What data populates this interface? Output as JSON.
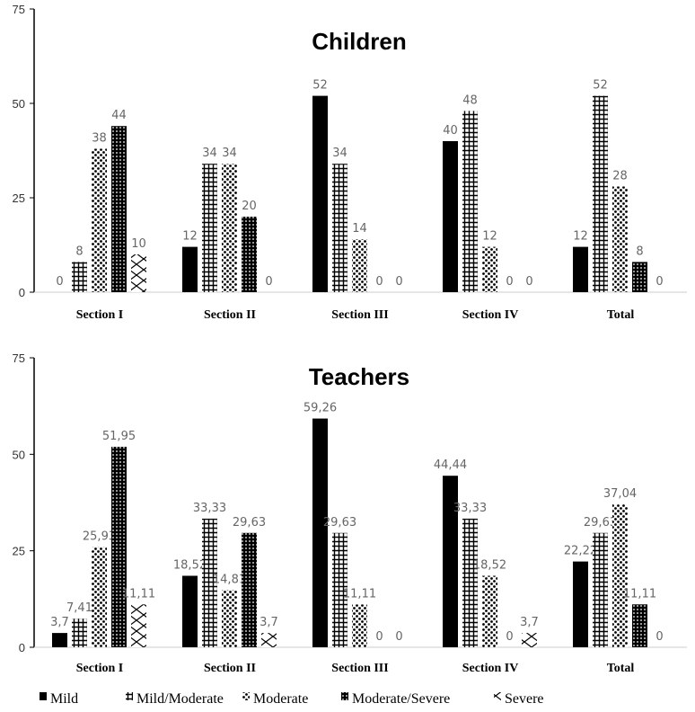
{
  "chart_data": [
    {
      "type": "bar",
      "title": "Children",
      "categories": [
        "Section I",
        "Section II",
        "Section III",
        "Section IV",
        "Total"
      ],
      "ylim": [
        0,
        75
      ],
      "yticks": [
        "0",
        "25",
        "50",
        "75"
      ],
      "series": [
        {
          "name": "Mild",
          "values": [
            0,
            12,
            52,
            40,
            12
          ],
          "labels": [
            "0",
            "12",
            "52",
            "40",
            "12"
          ]
        },
        {
          "name": "Mild/Moderate",
          "values": [
            8,
            34,
            34,
            48,
            52
          ],
          "labels": [
            "8",
            "34",
            "34",
            "48",
            "52"
          ]
        },
        {
          "name": "Moderate",
          "values": [
            38,
            34,
            14,
            12,
            28
          ],
          "labels": [
            "38",
            "34",
            "14",
            "12",
            "28"
          ]
        },
        {
          "name": "Moderate/Severe",
          "values": [
            44,
            20,
            0,
            0,
            8
          ],
          "labels": [
            "44",
            "20",
            "0",
            "0",
            "8"
          ]
        },
        {
          "name": "Severe",
          "values": [
            10,
            0,
            0,
            0,
            0
          ],
          "labels": [
            "10",
            "0",
            "0",
            "0",
            "0"
          ]
        }
      ]
    },
    {
      "type": "bar",
      "title": "Teachers",
      "categories": [
        "Section I",
        "Section II",
        "Section III",
        "Section IV",
        "Total"
      ],
      "ylim": [
        0,
        75
      ],
      "yticks": [
        "0",
        "25",
        "50",
        "75"
      ],
      "series": [
        {
          "name": "Mild",
          "values": [
            3.7,
            18.52,
            59.26,
            44.44,
            22.22
          ],
          "labels": [
            "3,7",
            "18,52",
            "59,26",
            "44,44",
            "22,22"
          ]
        },
        {
          "name": "Mild/Moderate",
          "values": [
            7.41,
            33.33,
            29.63,
            33.33,
            29.63
          ],
          "labels": [
            "7,41",
            "33,33",
            "29,63",
            "33,33",
            "29,63"
          ]
        },
        {
          "name": "Moderate",
          "values": [
            25.93,
            14.81,
            11.11,
            18.52,
            37.04
          ],
          "labels": [
            "25,93",
            "14,81",
            "11,11",
            "18,52",
            "37,04"
          ]
        },
        {
          "name": "Moderate/Severe",
          "values": [
            51.95,
            29.63,
            0,
            0,
            11.11
          ],
          "labels": [
            "51,95",
            "29,63",
            "0",
            "0",
            "11,11"
          ]
        },
        {
          "name": "Severe",
          "values": [
            11.11,
            3.7,
            0,
            3.7,
            0
          ],
          "labels": [
            "11,11",
            "3,7",
            "0",
            "3,7",
            "0"
          ]
        }
      ]
    }
  ],
  "legend": [
    "Mild",
    "Mild/Moderate",
    "Moderate",
    "Moderate/Severe",
    "Severe"
  ]
}
